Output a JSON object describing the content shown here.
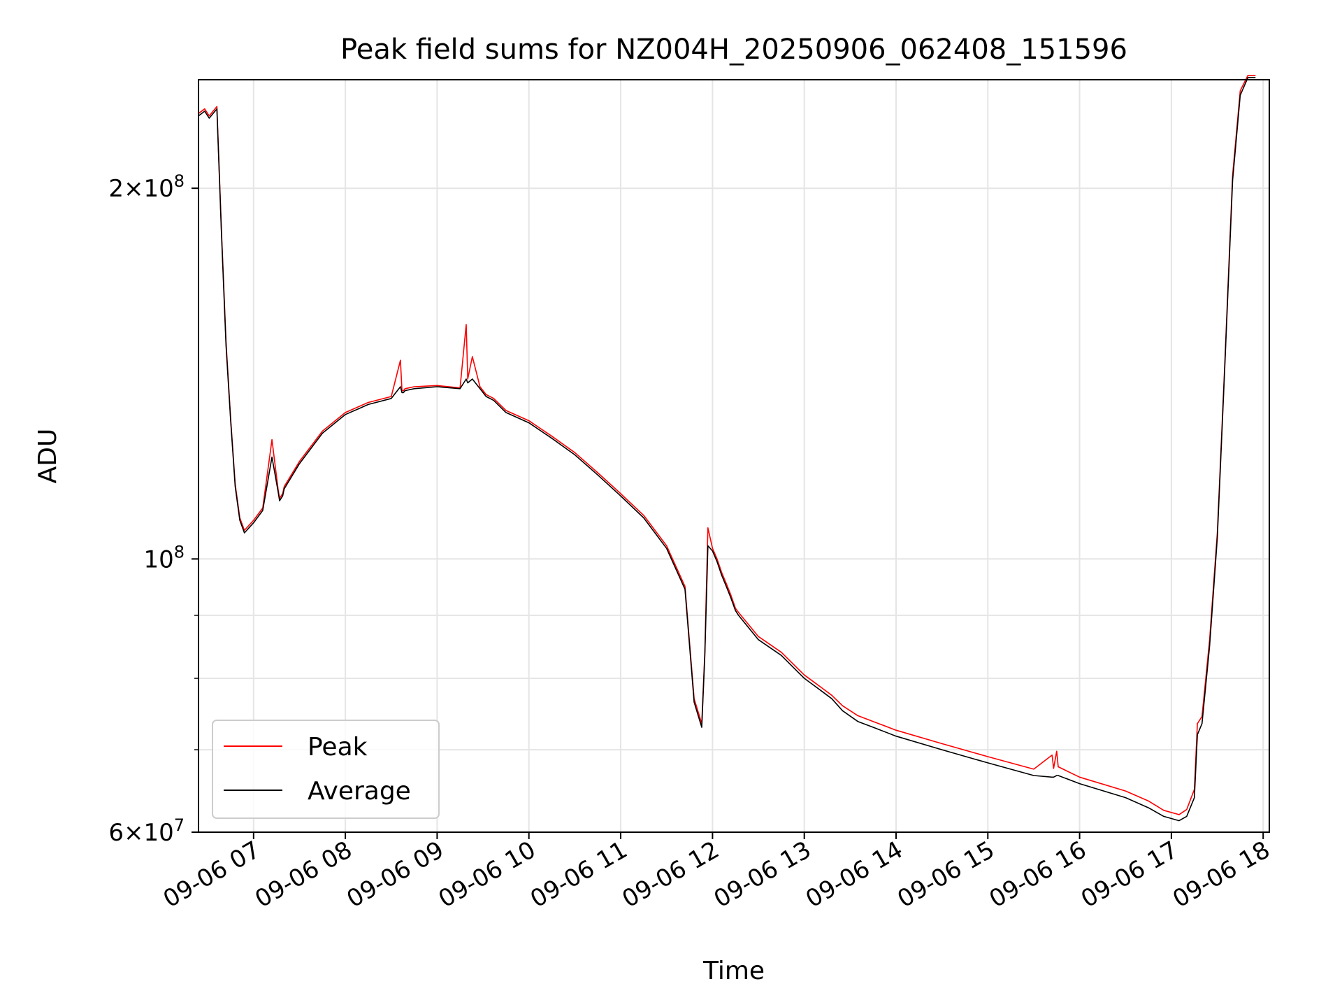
{
  "chart_data": {
    "type": "line",
    "title": "Peak field sums for NZ004H_20250906_062408_151596",
    "xlabel": "Time",
    "ylabel": "ADU",
    "yscale": "log",
    "xlim": [
      "2025-09-06 06:24",
      "2025-09-06 18:04"
    ],
    "ylim": [
      60000000,
      245000000
    ],
    "x_ticks": [
      {
        "value": "2025-09-06 07:00",
        "label": "09-06 07"
      },
      {
        "value": "2025-09-06 08:00",
        "label": "09-06 08"
      },
      {
        "value": "2025-09-06 09:00",
        "label": "09-06 09"
      },
      {
        "value": "2025-09-06 10:00",
        "label": "09-06 10"
      },
      {
        "value": "2025-09-06 11:00",
        "label": "09-06 11"
      },
      {
        "value": "2025-09-06 12:00",
        "label": "09-06 12"
      },
      {
        "value": "2025-09-06 13:00",
        "label": "09-06 13"
      },
      {
        "value": "2025-09-06 14:00",
        "label": "09-06 14"
      },
      {
        "value": "2025-09-06 15:00",
        "label": "09-06 15"
      },
      {
        "value": "2025-09-06 16:00",
        "label": "09-06 16"
      },
      {
        "value": "2025-09-06 17:00",
        "label": "09-06 17"
      },
      {
        "value": "2025-09-06 18:00",
        "label": "09-06 18"
      }
    ],
    "y_major_ticks": [
      {
        "value": 60000000,
        "mant": "6",
        "exp": "7"
      },
      {
        "value": 100000000,
        "mant": "",
        "exp": "8"
      },
      {
        "value": 200000000,
        "mant": "2",
        "exp": "8"
      }
    ],
    "y_minor_ticks": [
      70000000,
      80000000,
      90000000
    ],
    "grid": true,
    "legend_position": "lower left",
    "series": [
      {
        "name": "Peak",
        "color": "#ff0000",
        "x": [
          "2025-09-06 06:24",
          "2025-09-06 06:28",
          "2025-09-06 06:31",
          "2025-09-06 06:36",
          "2025-09-06 06:39",
          "2025-09-06 06:42",
          "2025-09-06 06:45",
          "2025-09-06 06:48",
          "2025-09-06 06:51",
          "2025-09-06 06:54",
          "2025-09-06 06:57",
          "2025-09-06 07:00",
          "2025-09-06 07:06",
          "2025-09-06 07:12",
          "2025-09-06 07:16",
          "2025-09-06 07:17",
          "2025-09-06 07:19",
          "2025-09-06 07:20",
          "2025-09-06 07:30",
          "2025-09-06 07:45",
          "2025-09-06 08:00",
          "2025-09-06 08:15",
          "2025-09-06 08:30",
          "2025-09-06 08:36",
          "2025-09-06 08:37",
          "2025-09-06 08:38",
          "2025-09-06 08:39",
          "2025-09-06 08:45",
          "2025-09-06 09:00",
          "2025-09-06 09:15",
          "2025-09-06 09:19",
          "2025-09-06 09:20",
          "2025-09-06 09:23",
          "2025-09-06 09:28",
          "2025-09-06 09:32",
          "2025-09-06 09:37",
          "2025-09-06 09:45",
          "2025-09-06 10:00",
          "2025-09-06 10:15",
          "2025-09-06 10:30",
          "2025-09-06 10:45",
          "2025-09-06 11:00",
          "2025-09-06 11:15",
          "2025-09-06 11:30",
          "2025-09-06 11:42",
          "2025-09-06 11:48",
          "2025-09-06 11:53",
          "2025-09-06 11:55",
          "2025-09-06 11:57",
          "2025-09-06 12:00",
          "2025-09-06 12:03",
          "2025-09-06 12:06",
          "2025-09-06 12:09",
          "2025-09-06 12:12",
          "2025-09-06 12:15",
          "2025-09-06 12:17",
          "2025-09-06 12:30",
          "2025-09-06 12:45",
          "2025-09-06 13:00",
          "2025-09-06 13:06",
          "2025-09-06 13:12",
          "2025-09-06 13:18",
          "2025-09-06 13:25",
          "2025-09-06 13:35",
          "2025-09-06 13:45",
          "2025-09-06 14:00",
          "2025-09-06 14:30",
          "2025-09-06 15:00",
          "2025-09-06 15:30",
          "2025-09-06 15:42",
          "2025-09-06 15:43",
          "2025-09-06 15:45",
          "2025-09-06 15:46",
          "2025-09-06 16:00",
          "2025-09-06 16:30",
          "2025-09-06 16:45",
          "2025-09-06 16:55",
          "2025-09-06 17:05",
          "2025-09-06 17:10",
          "2025-09-06 17:15",
          "2025-09-06 17:17",
          "2025-09-06 17:20",
          "2025-09-06 17:25",
          "2025-09-06 17:30",
          "2025-09-06 17:35",
          "2025-09-06 17:40",
          "2025-09-06 17:45",
          "2025-09-06 17:50",
          "2025-09-06 17:55"
        ],
        "y": [
          230000000,
          232000000,
          229000000,
          233000000,
          185000000,
          150000000,
          130000000,
          115000000,
          108000000,
          105500000,
          106500000,
          107500000,
          110000000,
          125000000,
          114000000,
          112000000,
          113000000,
          114500000,
          120000000,
          127000000,
          131500000,
          134000000,
          135500000,
          145000000,
          137000000,
          137000000,
          137500000,
          138000000,
          138300000,
          137700000,
          155000000,
          140000000,
          146000000,
          138000000,
          136000000,
          135000000,
          132000000,
          129500000,
          125800000,
          122000000,
          117500000,
          113000000,
          108500000,
          102500000,
          95000000,
          77000000,
          73500000,
          84000000,
          106000000,
          102000000,
          100000000,
          97500000,
          95500000,
          93500000,
          91200000,
          90500000,
          86500000,
          84000000,
          80500000,
          79500000,
          78500000,
          77500000,
          76000000,
          74600000,
          73800000,
          72600000,
          70800000,
          69100000,
          67500000,
          69300000,
          67600000,
          69800000,
          67800000,
          66500000,
          64800000,
          63600000,
          62500000,
          62000000,
          62600000,
          65000000,
          73500000,
          74500000,
          86000000,
          105000000,
          145000000,
          205000000,
          240000000,
          247000000,
          247000000
        ]
      },
      {
        "name": "Average",
        "color": "#000000",
        "x": [
          "2025-09-06 06:24",
          "2025-09-06 06:28",
          "2025-09-06 06:31",
          "2025-09-06 06:36",
          "2025-09-06 06:39",
          "2025-09-06 06:42",
          "2025-09-06 06:45",
          "2025-09-06 06:48",
          "2025-09-06 06:51",
          "2025-09-06 06:54",
          "2025-09-06 06:57",
          "2025-09-06 07:00",
          "2025-09-06 07:06",
          "2025-09-06 07:12",
          "2025-09-06 07:16",
          "2025-09-06 07:17",
          "2025-09-06 07:19",
          "2025-09-06 07:20",
          "2025-09-06 07:30",
          "2025-09-06 07:45",
          "2025-09-06 08:00",
          "2025-09-06 08:15",
          "2025-09-06 08:30",
          "2025-09-06 08:36",
          "2025-09-06 08:37",
          "2025-09-06 08:38",
          "2025-09-06 08:39",
          "2025-09-06 08:45",
          "2025-09-06 09:00",
          "2025-09-06 09:15",
          "2025-09-06 09:19",
          "2025-09-06 09:20",
          "2025-09-06 09:23",
          "2025-09-06 09:28",
          "2025-09-06 09:32",
          "2025-09-06 09:37",
          "2025-09-06 09:45",
          "2025-09-06 10:00",
          "2025-09-06 10:15",
          "2025-09-06 10:30",
          "2025-09-06 10:45",
          "2025-09-06 11:00",
          "2025-09-06 11:15",
          "2025-09-06 11:30",
          "2025-09-06 11:42",
          "2025-09-06 11:48",
          "2025-09-06 11:53",
          "2025-09-06 11:55",
          "2025-09-06 11:57",
          "2025-09-06 12:00",
          "2025-09-06 12:03",
          "2025-09-06 12:06",
          "2025-09-06 12:09",
          "2025-09-06 12:12",
          "2025-09-06 12:15",
          "2025-09-06 12:17",
          "2025-09-06 12:30",
          "2025-09-06 12:45",
          "2025-09-06 13:00",
          "2025-09-06 13:06",
          "2025-09-06 13:12",
          "2025-09-06 13:18",
          "2025-09-06 13:25",
          "2025-09-06 13:35",
          "2025-09-06 13:45",
          "2025-09-06 14:00",
          "2025-09-06 14:30",
          "2025-09-06 15:00",
          "2025-09-06 15:30",
          "2025-09-06 15:42",
          "2025-09-06 15:43",
          "2025-09-06 15:45",
          "2025-09-06 15:46",
          "2025-09-06 16:00",
          "2025-09-06 16:30",
          "2025-09-06 16:45",
          "2025-09-06 16:55",
          "2025-09-06 17:05",
          "2025-09-06 17:10",
          "2025-09-06 17:15",
          "2025-09-06 17:17",
          "2025-09-06 17:20",
          "2025-09-06 17:25",
          "2025-09-06 17:30",
          "2025-09-06 17:35",
          "2025-09-06 17:40",
          "2025-09-06 17:45",
          "2025-09-06 17:50",
          "2025-09-06 17:55"
        ],
        "y": [
          229000000,
          231000000,
          228000000,
          232000000,
          184000000,
          149000000,
          129500000,
          114500000,
          107500000,
          105000000,
          106000000,
          107000000,
          109500000,
          121000000,
          113500000,
          111500000,
          112500000,
          114000000,
          119500000,
          126500000,
          131000000,
          133500000,
          135000000,
          138000000,
          136500000,
          136500000,
          137000000,
          137500000,
          138000000,
          137500000,
          140000000,
          139000000,
          140000000,
          137500000,
          135500000,
          134500000,
          131500000,
          129000000,
          125300000,
          121500000,
          117000000,
          112500000,
          108000000,
          102000000,
          94500000,
          76500000,
          73000000,
          83500000,
          102500000,
          101500000,
          99500000,
          97000000,
          95000000,
          93000000,
          90800000,
          90000000,
          86000000,
          83500000,
          80000000,
          79000000,
          78000000,
          77000000,
          75300000,
          73800000,
          73000000,
          71800000,
          70000000,
          68300000,
          66700000,
          66500000,
          66500000,
          66700000,
          66700000,
          65700000,
          64000000,
          62800000,
          61800000,
          61300000,
          61800000,
          64000000,
          72000000,
          73500000,
          85000000,
          104000000,
          144000000,
          203000000,
          238000000,
          246000000,
          246000000
        ]
      }
    ]
  }
}
